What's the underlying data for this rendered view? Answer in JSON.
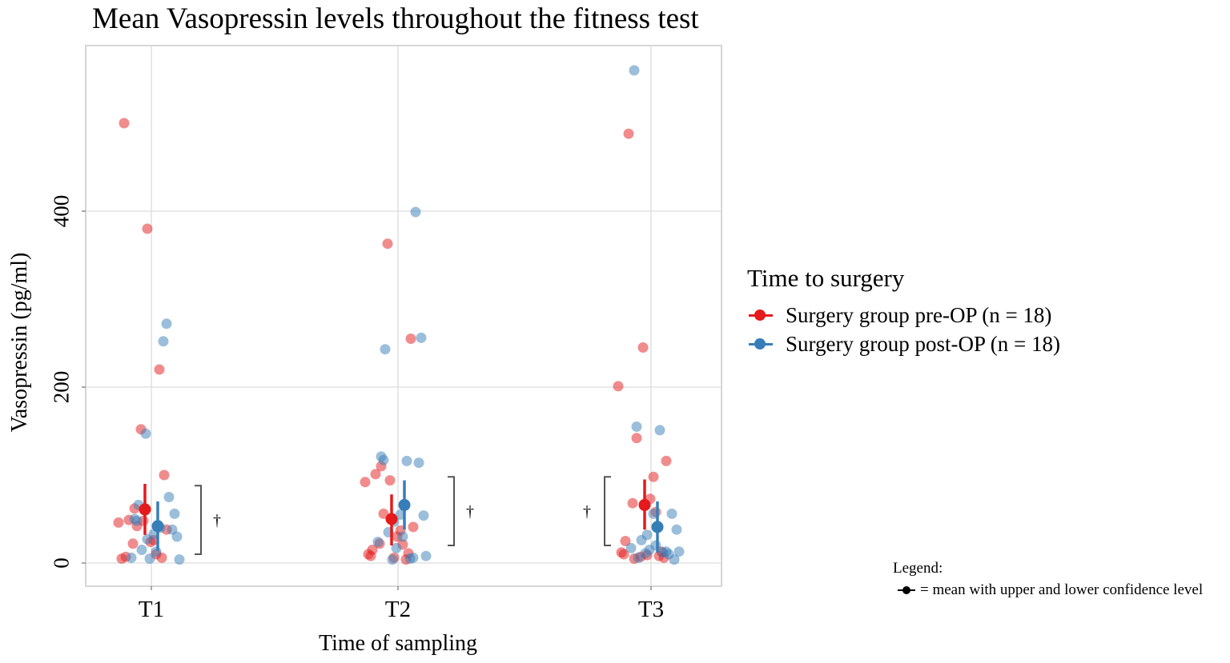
{
  "chart_data": {
    "type": "scatter",
    "title": "Mean Vasopressin levels throughout the fitness test",
    "xlabel": "Time of sampling",
    "ylabel": "Vasopressin (pg/ml)",
    "categories": [
      "T1",
      "T2",
      "T3"
    ],
    "ylim": [
      -42,
      590
    ],
    "yticks": [
      0,
      200,
      400
    ],
    "ytick_labels": [
      "0",
      "200",
      "400"
    ],
    "grid": true,
    "legend_title": "Time to surgery",
    "legend_position": "right",
    "series": [
      {
        "name": "Surgery group pre-OP (n = 18)",
        "color": "#e41a1c",
        "points": [
          {
            "category": "T1",
            "values": [
              500,
              380,
              220,
              152,
              100,
              62,
              49,
              48,
              46,
              42,
              38,
              26,
              24,
              22,
              10,
              7,
              6,
              5
            ]
          },
          {
            "category": "T2",
            "values": [
              363,
              255,
              110,
              101,
              94,
              92,
              56,
              41,
              37,
              30,
              22,
              21,
              15,
              11,
              10,
              8,
              6,
              4
            ]
          },
          {
            "category": "T3",
            "values": [
              488,
              245,
              201,
              142,
              116,
              98,
              73,
              68,
              58,
              25,
              13,
              12,
              10,
              9,
              8,
              7,
              6,
              5
            ]
          }
        ],
        "means": [
          61,
          50,
          66
        ],
        "ci_lower": [
          32,
          20,
          38
        ],
        "ci_upper": [
          90,
          78,
          95
        ]
      },
      {
        "name": "Surgery group post-OP (n = 18)",
        "color": "#377eb8",
        "points": [
          {
            "category": "T1",
            "values": [
              272,
              252,
              147,
              75,
              66,
              56,
              50,
              48,
              40,
              38,
              33,
              30,
              27,
              15,
              13,
              6,
              5,
              4
            ]
          },
          {
            "category": "T2",
            "values": [
              399,
              243,
              256,
              121,
              117,
              116,
              114,
              55,
              54,
              47,
              35,
              30,
              24,
              17,
              8,
              6,
              5,
              4
            ]
          },
          {
            "category": "T3",
            "values": [
              560,
              155,
              151,
              56,
              56,
              38,
              32,
              26,
              20,
              17,
              15,
              13,
              13,
              12,
              11,
              10,
              6,
              4
            ]
          }
        ],
        "means": [
          42,
          66,
          41
        ],
        "ci_lower": [
          14,
          38,
          12
        ],
        "ci_upper": [
          70,
          94,
          70
        ]
      }
    ],
    "significance": [
      {
        "category": "T1",
        "symbol": "†",
        "range": [
          10,
          88
        ],
        "side": "right"
      },
      {
        "category": "T2",
        "symbol": "†",
        "range": [
          20,
          98
        ],
        "side": "right"
      },
      {
        "category": "T3",
        "symbol": "†",
        "range": [
          20,
          98
        ],
        "side": "left"
      }
    ]
  },
  "legend_note": {
    "heading": "Legend:",
    "text": "= mean with upper and lower confidence level"
  }
}
